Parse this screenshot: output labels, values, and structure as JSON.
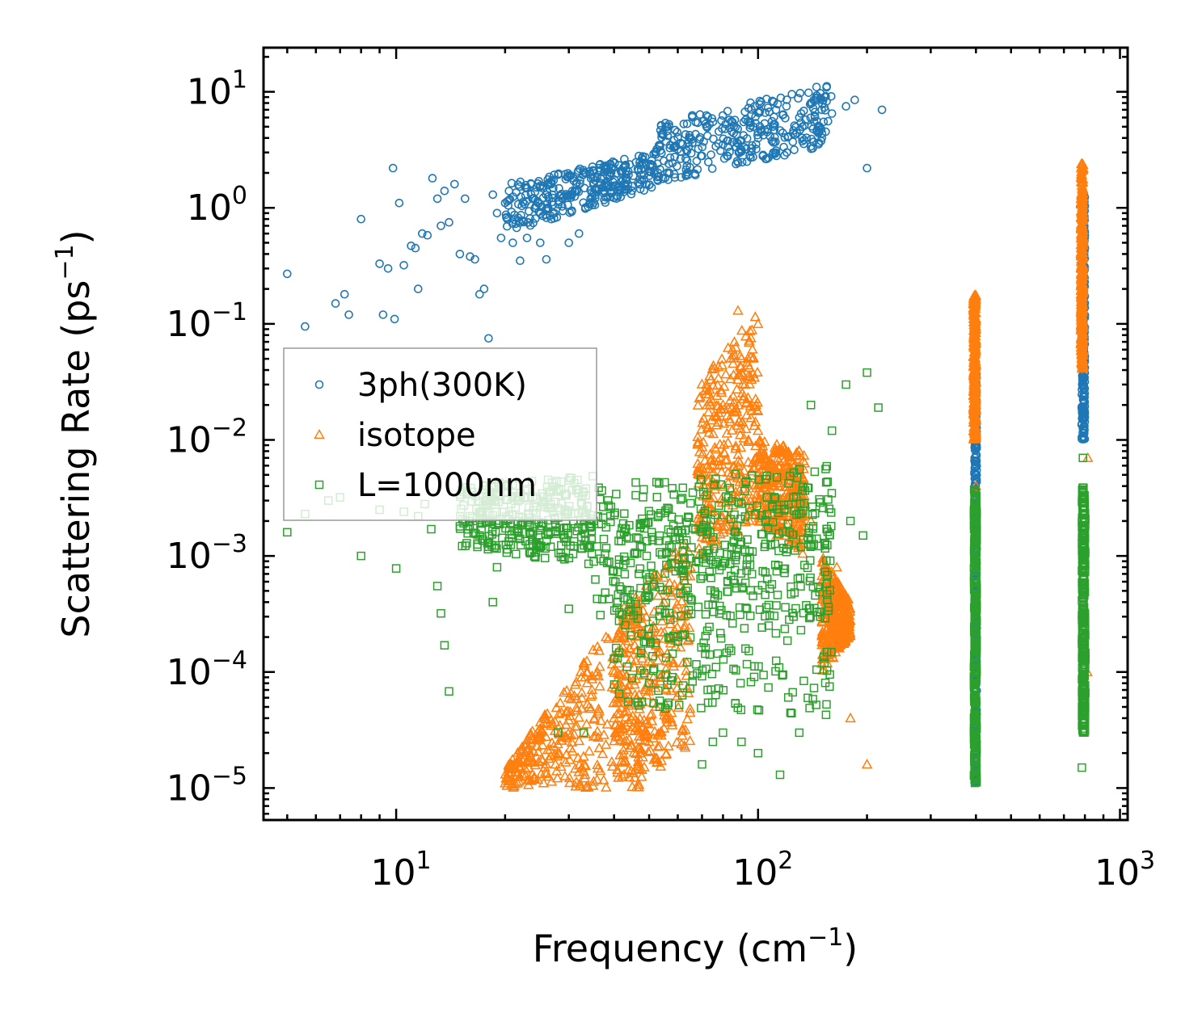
{
  "chart_data": {
    "type": "scatter",
    "title": "",
    "xlabel": "Frequency (cm",
    "xlabel_sup": "−1",
    "xlabel_end": ")",
    "ylabel": "Scattering Rate (ps",
    "ylabel_sup": "−1",
    "ylabel_end": ")",
    "xscale": "log",
    "yscale": "log",
    "xlim": [
      4.3,
      1050
    ],
    "ylim": [
      5.3e-06,
      24
    ],
    "xticks": [
      {
        "value": 10,
        "base": "10",
        "exp": "1"
      },
      {
        "value": 100,
        "base": "10",
        "exp": "2"
      },
      {
        "value": 1000,
        "base": "10",
        "exp": "3"
      }
    ],
    "yticks": [
      {
        "value": 1e-05,
        "base": "10",
        "exp": "−5"
      },
      {
        "value": 0.0001,
        "base": "10",
        "exp": "−4"
      },
      {
        "value": 0.001,
        "base": "10",
        "exp": "−3"
      },
      {
        "value": 0.01,
        "base": "10",
        "exp": "−2"
      },
      {
        "value": 0.1,
        "base": "10",
        "exp": "−1"
      },
      {
        "value": 1,
        "base": "10",
        "exp": "0"
      },
      {
        "value": 10,
        "base": "10",
        "exp": "1"
      }
    ],
    "legend_position": "center-left",
    "series": [
      {
        "name": "3ph(300K)",
        "color": "#1f77b4",
        "marker": "circle",
        "points": [
          [
            5.0,
            0.27
          ],
          [
            5.6,
            0.095
          ],
          [
            6.8,
            0.15
          ],
          [
            7.2,
            0.18
          ],
          [
            7.4,
            0.12
          ],
          [
            8.0,
            0.8
          ],
          [
            9.0,
            0.33
          ],
          [
            9.2,
            0.12
          ],
          [
            9.5,
            0.3
          ],
          [
            9.8,
            2.2
          ],
          [
            9.9,
            0.11
          ],
          [
            10.2,
            1.1
          ],
          [
            10.5,
            0.32
          ],
          [
            11.0,
            0.47
          ],
          [
            11.3,
            0.45
          ],
          [
            11.5,
            0.2
          ],
          [
            11.8,
            0.6
          ],
          [
            12.2,
            0.58
          ],
          [
            12.6,
            1.8
          ],
          [
            13.0,
            1.2
          ],
          [
            13.3,
            0.7
          ],
          [
            13.6,
            1.4
          ],
          [
            14.0,
            0.75
          ],
          [
            14.5,
            1.6
          ],
          [
            15.0,
            0.4
          ],
          [
            15.5,
            1.2
          ],
          [
            16.0,
            0.38
          ],
          [
            16.5,
            0.36
          ],
          [
            17.0,
            0.18
          ],
          [
            17.5,
            0.2
          ],
          [
            18.0,
            0.075
          ],
          [
            18.5,
            1.3
          ],
          [
            19.0,
            0.9
          ],
          [
            19.5,
            0.55
          ],
          [
            20.0,
            1.1
          ],
          [
            21.0,
            0.5
          ],
          [
            22.0,
            0.35
          ],
          [
            23.0,
            0.55
          ],
          [
            24.0,
            1.2
          ],
          [
            25.0,
            0.5
          ],
          [
            26.0,
            0.36
          ],
          [
            27.0,
            1.3
          ],
          [
            30.0,
            0.5
          ],
          [
            32.0,
            0.6
          ],
          [
            35.0,
            1.8
          ],
          [
            38.0,
            1.5
          ],
          [
            42.0,
            2.0
          ],
          [
            47.0,
            1.6
          ],
          [
            52.0,
            3.0
          ],
          [
            56.0,
            5.0
          ],
          [
            60.0,
            3.2
          ],
          [
            65.0,
            4.0
          ],
          [
            70.0,
            2.8
          ],
          [
            75.0,
            5.5
          ],
          [
            80.0,
            3.5
          ],
          [
            90.0,
            3.8
          ],
          [
            100.0,
            4.5
          ],
          [
            110.0,
            5.0
          ],
          [
            120.0,
            3.0
          ],
          [
            130.0,
            6.0
          ],
          [
            140.0,
            8.0
          ],
          [
            145.0,
            11.0
          ],
          [
            150.0,
            7.0
          ],
          [
            160.0,
            6.5
          ],
          [
            175.0,
            7.5
          ],
          [
            200.0,
            2.2
          ],
          [
            220.0,
            7.0
          ],
          [
            185.0,
            8.5
          ]
        ],
        "bands": [
          {
            "x": [
              20,
              52
            ],
            "y_lo": [
              0.6,
              1.5
            ],
            "y_hi": [
              1.6,
              3.0
            ]
          },
          {
            "x": [
              52,
              160
            ],
            "y_lo": [
              1.6,
              3.5
            ],
            "y_hi": [
              5.5,
              12.0
            ]
          },
          {
            "x": [
              396,
              402
            ],
            "y_lo": [
              1.1e-05,
              1.1e-05
            ],
            "y_hi": [
              0.04,
              0.04
            ]
          },
          {
            "x": [
              784,
              800
            ],
            "y_lo": [
              0.01,
              0.01
            ],
            "y_hi": [
              1.3,
              1.3
            ]
          }
        ]
      },
      {
        "name": "isotope",
        "color": "#ff7f0e",
        "marker": "triangle",
        "points": [
          [
            20,
            1.1e-05
          ],
          [
            22,
            1.5e-05
          ],
          [
            25,
            3e-05
          ],
          [
            28,
            2e-05
          ],
          [
            30,
            6e-05
          ],
          [
            33,
            0.00012
          ],
          [
            36,
            0.0001
          ],
          [
            38,
            0.0002
          ],
          [
            40,
            4e-05
          ],
          [
            43,
            6e-05
          ],
          [
            46,
            0.0003
          ],
          [
            50,
            2.5e-05
          ],
          [
            55,
            0.0004
          ],
          [
            60,
            0.0002
          ],
          [
            65,
            0.0008
          ],
          [
            72,
            0.03
          ],
          [
            75,
            0.004
          ],
          [
            80,
            0.02
          ],
          [
            85,
            0.06
          ],
          [
            88,
            0.13
          ],
          [
            92,
            0.03
          ],
          [
            100,
            0.012
          ],
          [
            110,
            0.006
          ],
          [
            120,
            0.003
          ],
          [
            130,
            0.008
          ],
          [
            140,
            0.002
          ],
          [
            150,
            0.0006
          ],
          [
            165,
            0.0008
          ],
          [
            175,
            0.0003
          ],
          [
            180,
            4e-05
          ],
          [
            200,
            1.6e-05
          ],
          [
            400,
            0.004
          ],
          [
            812,
            0.0001
          ],
          [
            815,
            0.007
          ]
        ],
        "bands": [
          {
            "x": [
              20,
              48
            ],
            "y_lo": [
              1e-05,
              1e-05
            ],
            "y_hi": [
              1.5e-05,
              0.0006
            ]
          },
          {
            "x": [
              40,
              65
            ],
            "y_lo": [
              1e-05,
              2e-05
            ],
            "y_hi": [
              0.0003,
              0.0015
            ]
          },
          {
            "x": [
              68,
              100
            ],
            "y_lo": [
              0.001,
              0.002
            ],
            "y_hi": [
              0.03,
              0.13
            ]
          },
          {
            "x": [
              100,
              135
            ],
            "y_lo": [
              0.002,
              0.001
            ],
            "y_hi": [
              0.01,
              0.008
            ]
          },
          {
            "x": [
              150,
              180
            ],
            "y_lo": [
              0.0001,
              0.0002
            ],
            "y_hi": [
              0.001,
              0.0004
            ]
          },
          {
            "x": [
              394,
              400
            ],
            "y_lo": [
              0.01,
              0.01
            ],
            "y_hi": [
              0.18,
              0.18
            ]
          },
          {
            "x": [
              780,
              792
            ],
            "y_lo": [
              0.04,
              0.04
            ],
            "y_hi": [
              2.5,
              2.5
            ]
          }
        ]
      },
      {
        "name": "L=1000nm",
        "color": "#2ca02c",
        "marker": "square",
        "points": [
          [
            5.0,
            0.0016
          ],
          [
            5.6,
            0.0023
          ],
          [
            6.5,
            0.003
          ],
          [
            7.0,
            0.0032
          ],
          [
            8.0,
            0.001
          ],
          [
            9.0,
            0.0025
          ],
          [
            10.0,
            0.00078
          ],
          [
            10.5,
            0.0024
          ],
          [
            11.5,
            0.0022
          ],
          [
            12.0,
            0.0028
          ],
          [
            12.5,
            0.0017
          ],
          [
            13.0,
            0.00055
          ],
          [
            13.3,
            0.00032
          ],
          [
            13.6,
            0.00017
          ],
          [
            14.0,
            6.8e-05
          ],
          [
            15.0,
            0.0018
          ],
          [
            16.0,
            0.0022
          ],
          [
            17.0,
            0.0015
          ],
          [
            18.0,
            0.0012
          ],
          [
            18.5,
            0.0004
          ],
          [
            19.0,
            0.0008
          ],
          [
            22.0,
            0.0014
          ],
          [
            25.0,
            0.0012
          ],
          [
            28.0,
            3e-05
          ],
          [
            30.0,
            0.00035
          ],
          [
            33.0,
            3e-05
          ],
          [
            40.0,
            0.00013
          ],
          [
            50.0,
            8e-05
          ],
          [
            60.0,
            0.0002
          ],
          [
            70.0,
            1.6e-05
          ],
          [
            75.0,
            2.5e-05
          ],
          [
            80.0,
            3e-05
          ],
          [
            90.0,
            2.5e-05
          ],
          [
            100.0,
            2e-05
          ],
          [
            115.0,
            1.3e-05
          ],
          [
            130.0,
            3e-05
          ],
          [
            140.0,
            0.02
          ],
          [
            160.0,
            0.012
          ],
          [
            175.0,
            0.03
          ],
          [
            200.0,
            0.038
          ],
          [
            215.0,
            0.019
          ],
          [
            180.0,
            0.002
          ],
          [
            195.0,
            0.0015
          ],
          [
            400.0,
            1.2e-05
          ],
          [
            790.0,
            0.007
          ],
          [
            785.0,
            1.5e-05
          ]
        ],
        "bands": [
          {
            "x": [
              15,
              35
            ],
            "y_lo": [
              0.0012,
              0.0008
            ],
            "y_hi": [
              0.004,
              0.005
            ]
          },
          {
            "x": [
              35,
              160
            ],
            "y_lo": [
              0.0003,
              0.0003
            ],
            "y_hi": [
              0.004,
              0.006
            ]
          },
          {
            "x": [
              40,
              160
            ],
            "y_lo": [
              5e-05,
              4e-05
            ],
            "y_hi": [
              0.0025,
              0.003
            ]
          },
          {
            "x": [
              395,
              402
            ],
            "y_lo": [
              1.1e-05,
              1.1e-05
            ],
            "y_hi": [
              0.004,
              0.004
            ]
          },
          {
            "x": [
              785,
              802
            ],
            "y_lo": [
              3e-05,
              3e-05
            ],
            "y_hi": [
              0.004,
              0.004
            ]
          }
        ]
      }
    ]
  }
}
